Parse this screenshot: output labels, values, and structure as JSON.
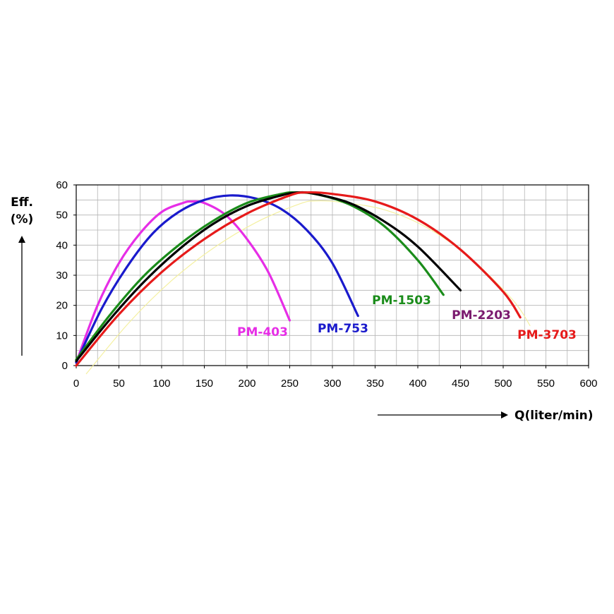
{
  "chart_data": {
    "type": "line",
    "title": "",
    "ylabel": "Eff.",
    "ylabel_unit": "(%)",
    "xlabel": "Q(liter/min)",
    "xlim": [
      0,
      600
    ],
    "ylim": [
      0,
      60
    ],
    "x_ticks": [
      "0",
      "50",
      "100",
      "150",
      "200",
      "250",
      "300",
      "350",
      "400",
      "450",
      "500",
      "550",
      "600"
    ],
    "y_ticks": [
      "0",
      "10",
      "20",
      "30",
      "40",
      "50",
      "60"
    ],
    "grid": true,
    "legend": "none (inline labels at curve ends)",
    "series": [
      {
        "name": "PM-403",
        "color": "#e62ee6",
        "x": [
          0,
          25,
          50,
          75,
          100,
          125,
          135,
          150,
          175,
          200,
          225,
          250
        ],
        "y": [
          1,
          20,
          34,
          44,
          51,
          54,
          54.5,
          54,
          50,
          42,
          31,
          15
        ]
      },
      {
        "name": "PM-753",
        "color": "#1a1acc",
        "x": [
          0,
          30,
          60,
          90,
          120,
          150,
          180,
          210,
          240,
          270,
          300,
          330
        ],
        "y": [
          1,
          19,
          33,
          44,
          51,
          55,
          56.5,
          55.5,
          52,
          45,
          34,
          16.5
        ]
      },
      {
        "name": "PM-1503",
        "color": "#1a8c1a",
        "x": [
          0,
          40,
          80,
          120,
          160,
          200,
          240,
          255,
          280,
          320,
          360,
          400,
          430
        ],
        "y": [
          2,
          17,
          30,
          40,
          48,
          54,
          57,
          57.5,
          57,
          53.5,
          46.5,
          35,
          23.5
        ]
      },
      {
        "name": "PM-2203",
        "color": "#000000",
        "x": [
          0,
          40,
          80,
          120,
          160,
          200,
          240,
          260,
          280,
          320,
          360,
          400,
          450
        ],
        "y": [
          1.5,
          15.5,
          28,
          38.5,
          47,
          53,
          56.5,
          57.5,
          57,
          54,
          48,
          39.5,
          25
        ]
      },
      {
        "name": "PM-3703",
        "color": "#e61a1a",
        "x": [
          0,
          50,
          100,
          150,
          200,
          250,
          270,
          300,
          350,
          400,
          450,
          500,
          520
        ],
        "y": [
          0,
          17,
          31,
          42,
          50.5,
          56.5,
          57.5,
          57,
          54.5,
          48.5,
          38.5,
          24.5,
          16
        ]
      }
    ],
    "series_label_colors": {
      "PM-403": "#e62ee6",
      "PM-753": "#1a1acc",
      "PM-1503": "#1a8c1a",
      "PM-2203": "#7a1a6e",
      "PM-3703": "#e61a1a"
    }
  }
}
